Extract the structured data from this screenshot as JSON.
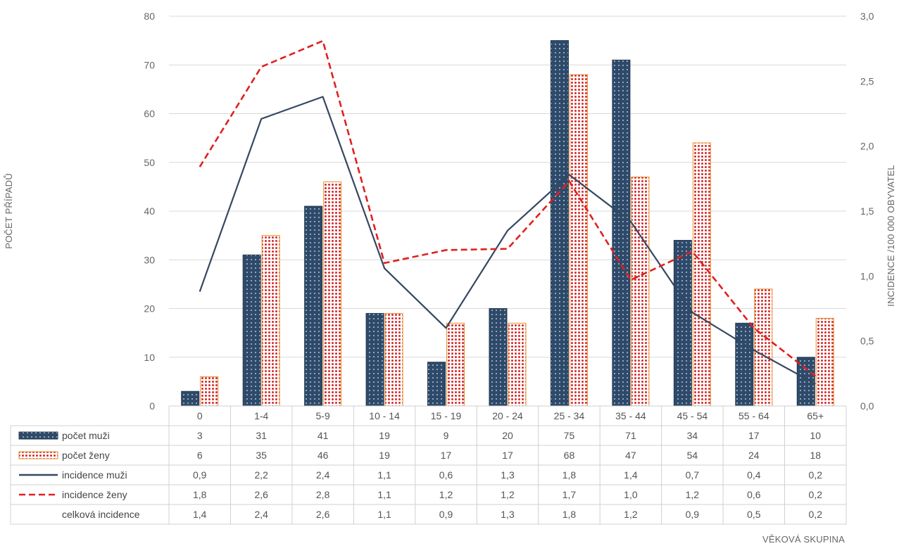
{
  "chart_data": {
    "type": "bar",
    "xlabel": "VĚKOVÁ SKUPINA",
    "ylabel": "POČET PŘÍPADŮ",
    "y2label": "INCIDENCE /100 000 OBYVATEL",
    "ylim": [
      0,
      80
    ],
    "y2lim": [
      0,
      3
    ],
    "yticks": [
      "0",
      "10",
      "20",
      "30",
      "40",
      "50",
      "60",
      "70",
      "80"
    ],
    "y2ticks": [
      "0,0",
      "0,5",
      "1,0",
      "1,5",
      "2,0",
      "2,5",
      "3,0"
    ],
    "grid": true,
    "legend": "table-bottom",
    "categories": [
      "0",
      "1-4",
      "5-9",
      "10 - 14",
      "15 - 19",
      "20 - 24",
      "25 - 34",
      "35 - 44",
      "45 - 54",
      "55 - 64",
      "65+"
    ],
    "series": [
      {
        "name": "počet muži",
        "type": "bar",
        "axis": "left",
        "color": "#2e4a6b",
        "values": [
          3,
          31,
          41,
          19,
          9,
          20,
          75,
          71,
          34,
          17,
          10
        ]
      },
      {
        "name": "počet ženy",
        "type": "bar",
        "axis": "left",
        "color": "#d42a2a",
        "values": [
          6,
          35,
          46,
          19,
          17,
          17,
          68,
          47,
          54,
          24,
          18
        ]
      },
      {
        "name": "incidence muži",
        "type": "line",
        "axis": "right",
        "color": "#354761",
        "values": [
          0.88,
          2.21,
          2.38,
          1.06,
          0.6,
          1.35,
          1.78,
          1.42,
          0.72,
          0.43,
          0.17
        ],
        "labels": [
          "0,9",
          "2,2",
          "2,4",
          "1,1",
          "0,6",
          "1,3",
          "1,8",
          "1,4",
          "0,7",
          "0,4",
          "0,2"
        ]
      },
      {
        "name": "incidence ženy",
        "type": "line",
        "axis": "right",
        "color": "#e02020",
        "dash": true,
        "values": [
          1.84,
          2.61,
          2.81,
          1.1,
          1.2,
          1.21,
          1.73,
          0.97,
          1.19,
          0.6,
          0.23
        ],
        "labels": [
          "1,8",
          "2,6",
          "2,8",
          "1,1",
          "1,2",
          "1,2",
          "1,7",
          "1,0",
          "1,2",
          "0,6",
          "0,2"
        ]
      },
      {
        "name": "celková incidence",
        "type": "table-only",
        "labels": [
          "1,4",
          "2,4",
          "2,6",
          "1,1",
          "0,9",
          "1,3",
          "1,8",
          "1,2",
          "0,9",
          "0,5",
          "0,2"
        ]
      }
    ]
  }
}
